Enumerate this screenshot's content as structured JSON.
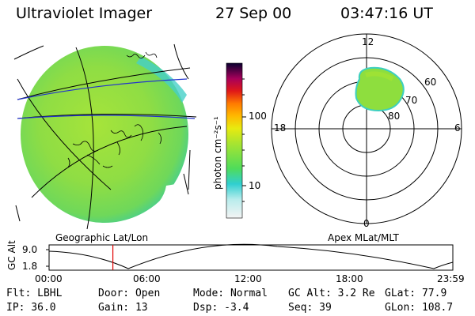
{
  "header": {
    "instrument": "Ultraviolet Imager",
    "date": "27 Sep 00",
    "time": "03:47:16 UT"
  },
  "image_labels": {
    "geographic": "Geographic Lat/Lon",
    "apex": "Apex MLat/MLT"
  },
  "colorbar": {
    "unit_label": "photon cm⁻²s⁻¹",
    "ticks": [
      "100",
      "10"
    ],
    "colors": [
      "#f2f2f2",
      "#39d0d0",
      "#5fe04a",
      "#b4e632",
      "#ffe600",
      "#ff9900",
      "#e02020",
      "#a0004a",
      "#000030"
    ]
  },
  "polar_plot": {
    "mlt_labels": {
      "top": "12",
      "bottom": "0",
      "left": "18",
      "right": "6"
    },
    "lat_labels": [
      "60",
      "70",
      "80"
    ]
  },
  "altitude_track": {
    "ylabel": "GC Alt",
    "y_ticks": [
      "9.0",
      "1.8"
    ],
    "x_ticks": [
      "00:00",
      "06:00",
      "12:00",
      "18:00",
      "23:59"
    ],
    "current_time_fraction": 0.158
  },
  "status": {
    "flt": "Flt: LBHL",
    "ip": "IP: 36.0",
    "door": "Door: Open",
    "gain": "Gain: 13",
    "mode": "Mode: Normal",
    "dsp": "Dsp:   -3.4",
    "gc_alt": "GC Alt: 3.2 Re",
    "seq": "Seq: 39",
    "glat": "GLat:  77.9",
    "glon": "GLon: 108.7"
  }
}
